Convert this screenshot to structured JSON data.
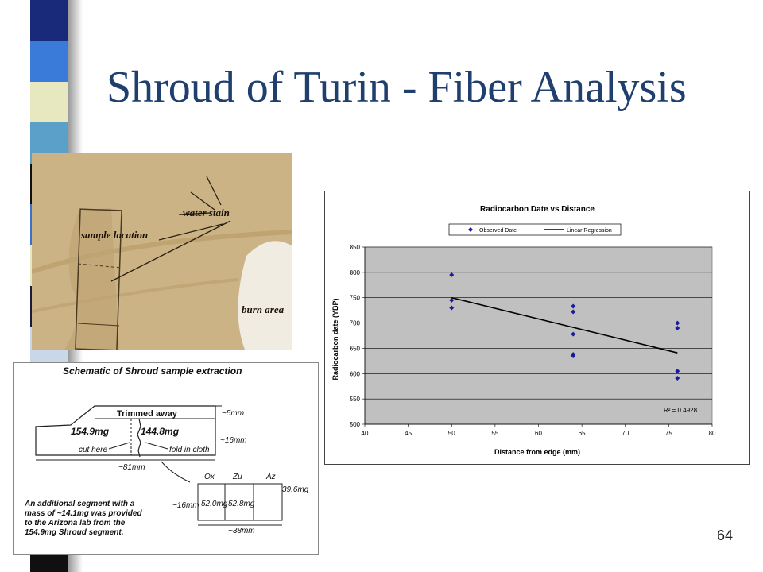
{
  "slide": {
    "title": "Shroud of Turin - Fiber Analysis",
    "page_number": "64",
    "stripe_colors": [
      "#1a2a7a",
      "#3a7ad8",
      "#e8e8c0",
      "#5aa0c8",
      "#101010",
      "#3a6fd0",
      "#e8e8c0",
      "#1a1a40",
      "#c8d8e8",
      "#4a90d0",
      "#101010",
      "#e8e8c0",
      "#2a5ab8",
      "#101010"
    ]
  },
  "photo": {
    "labels": {
      "water_stain": "water stain",
      "sample_location": "sample location",
      "burn_area": "burn area"
    }
  },
  "schematic": {
    "title": "Schematic of Shroud sample extraction",
    "trimmed_away": "Trimmed away",
    "dim_5mm": "~5mm",
    "dim_16mm": "~16mm",
    "mass_left": "154.9mg",
    "mass_right": "144.8mg",
    "cut_here": "cut here",
    "fold_in_cloth": "fold in cloth",
    "dim_81mm": "~81mm",
    "lab_ox": "Ox",
    "lab_zu": "Zu",
    "lab_az": "Az",
    "mass_az": "39.6mg",
    "dim_16mm_b": "~16mm",
    "mass_ox": "52.0mg",
    "mass_zu": "52.8mg",
    "dim_38mm": "~38mm",
    "note_lines": [
      "An additional segment with a",
      "mass of ~14.1mg was provided",
      "to the Arizona lab from the",
      "154.9mg Shroud segment."
    ]
  },
  "chart_data": {
    "type": "scatter",
    "title": "Radiocarbon Date vs Distance",
    "xlabel": "Distance from edge (mm)",
    "ylabel": "Radiocarbon date (YBP)",
    "xlim": [
      40,
      80
    ],
    "ylim": [
      500,
      850
    ],
    "xticks": [
      40,
      45,
      50,
      55,
      60,
      65,
      70,
      75,
      80
    ],
    "yticks": [
      500,
      550,
      600,
      650,
      700,
      750,
      800,
      850
    ],
    "grid": "horizontal",
    "legend_position": "top",
    "series": [
      {
        "name": "Observed Date",
        "color": "#1a1aa0",
        "marker": "diamond",
        "points": [
          [
            50,
            795
          ],
          [
            50,
            745
          ],
          [
            50,
            730
          ],
          [
            64,
            733
          ],
          [
            64,
            722
          ],
          [
            64,
            678
          ],
          [
            64,
            638
          ],
          [
            64,
            635
          ],
          [
            76,
            700
          ],
          [
            76,
            690
          ],
          [
            76,
            605
          ],
          [
            76,
            591
          ]
        ]
      },
      {
        "name": "Linear Regression",
        "color": "#000000",
        "type": "line",
        "points": [
          [
            50,
            750
          ],
          [
            76,
            641
          ]
        ]
      }
    ],
    "annotation": "R² = 0.4928",
    "plot_background": "#c0c0c0"
  }
}
